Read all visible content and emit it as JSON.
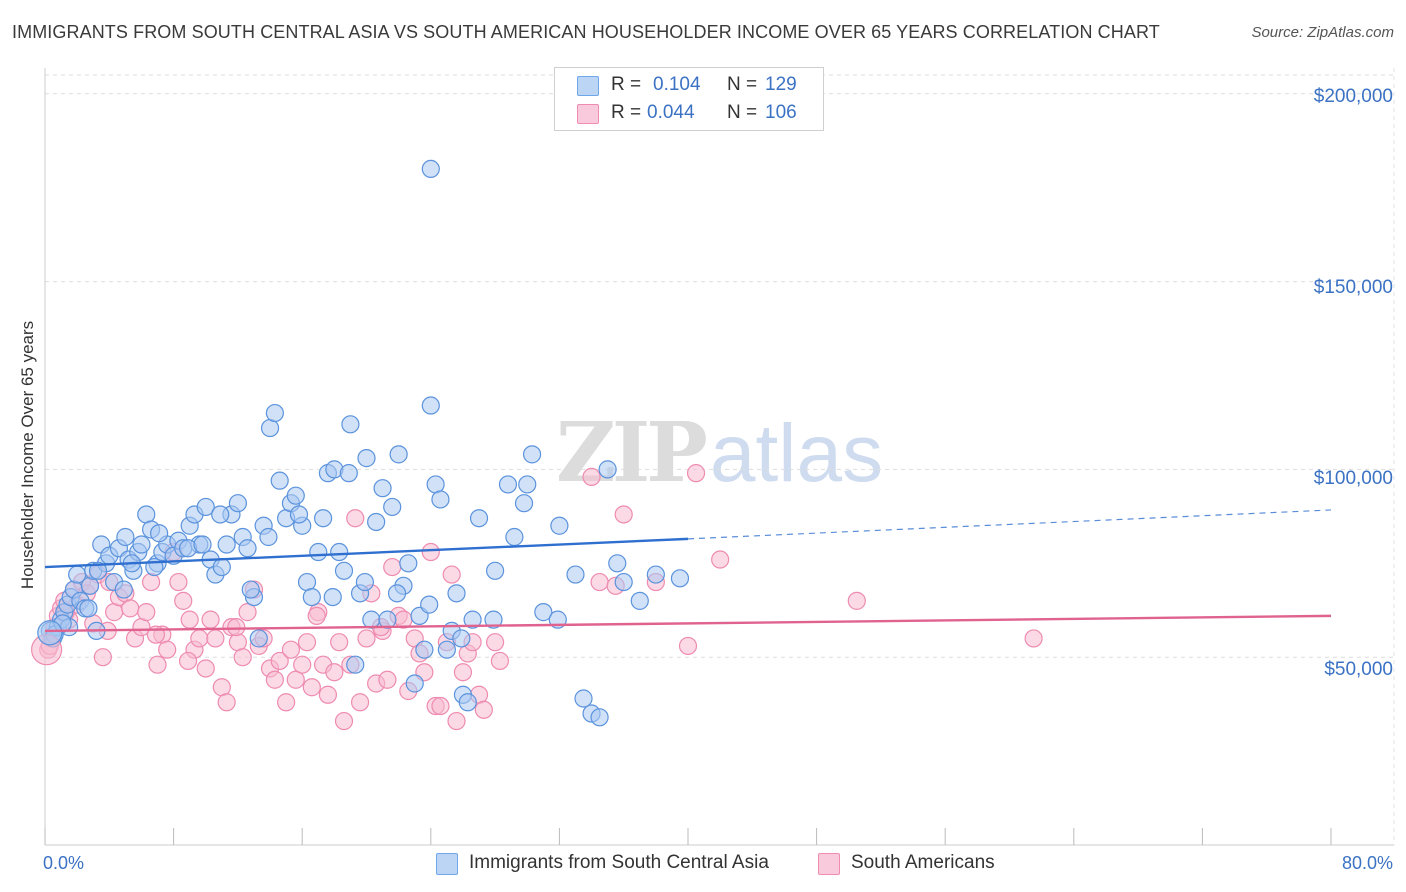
{
  "title": "IMMIGRANTS FROM SOUTH CENTRAL ASIA VS SOUTH AMERICAN HOUSEHOLDER INCOME OVER 65 YEARS CORRELATION CHART",
  "source": "Source: ZipAtlas.com",
  "watermark": {
    "zip": "ZIP",
    "atlas": "atlas"
  },
  "stats_legend": [
    {
      "r_label": "R =",
      "r_value": "0.104",
      "n_label": "N =",
      "n_value": "129",
      "color": "#6ea8ea"
    },
    {
      "r_label": "R =",
      "r_value": "0.044",
      "n_label": "N =",
      "n_value": "106",
      "color": "#f08cb0"
    }
  ],
  "colors": {
    "blue_fill": "#a9c9f2",
    "blue_stroke": "#5b93dc",
    "blue_line": "#2f6fd0",
    "pink_fill": "#f7bcd0",
    "pink_stroke": "#ee8bb0",
    "pink_line": "#e0628f",
    "axis_text": "#3b72c4",
    "grid": "#dddddd"
  },
  "chart_data": {
    "type": "scatter",
    "title": "IMMIGRANTS FROM SOUTH CENTRAL ASIA VS SOUTH AMERICAN HOUSEHOLDER INCOME OVER 65 YEARS CORRELATION CHART",
    "xlabel": "",
    "ylabel": "Householder Income Over 65 years",
    "xlim": [
      0,
      80
    ],
    "ylim": [
      0,
      205000
    ],
    "x_tick_labels": [
      "0.0%",
      "80.0%"
    ],
    "y_ticks": [
      50000,
      100000,
      150000,
      200000
    ],
    "y_tick_labels": [
      "$50,000",
      "$100,000",
      "$150,000",
      "$200,000"
    ],
    "grid": true,
    "legend_position": "bottom",
    "series": [
      {
        "name": "Immigrants from South Central Asia",
        "trend": {
          "x0": 0,
          "y0": 74000,
          "x1": 40,
          "y1": 81500,
          "dashed_to_x": 80,
          "dashed_to_y": 89200
        },
        "points": [
          [
            0.3,
            57000
          ],
          [
            0.5,
            55000
          ],
          [
            0.8,
            58000
          ],
          [
            1.0,
            60000
          ],
          [
            1.2,
            62000
          ],
          [
            1.4,
            64000
          ],
          [
            1.6,
            66000
          ],
          [
            1.8,
            68000
          ],
          [
            2.0,
            72000
          ],
          [
            2.2,
            65000
          ],
          [
            2.5,
            63000
          ],
          [
            2.8,
            69000
          ],
          [
            3.0,
            73000
          ],
          [
            3.2,
            57000
          ],
          [
            3.5,
            80000
          ],
          [
            3.8,
            75000
          ],
          [
            4.0,
            77000
          ],
          [
            4.3,
            70000
          ],
          [
            4.6,
            79000
          ],
          [
            5.0,
            82000
          ],
          [
            5.2,
            76000
          ],
          [
            5.5,
            73000
          ],
          [
            5.8,
            78000
          ],
          [
            6.0,
            80000
          ],
          [
            6.3,
            88000
          ],
          [
            6.6,
            84000
          ],
          [
            7.0,
            75000
          ],
          [
            7.3,
            78000
          ],
          [
            7.6,
            80000
          ],
          [
            8.0,
            77000
          ],
          [
            8.3,
            81000
          ],
          [
            8.6,
            79000
          ],
          [
            9.0,
            85000
          ],
          [
            9.3,
            88000
          ],
          [
            9.6,
            80000
          ],
          [
            10.0,
            90000
          ],
          [
            10.3,
            76000
          ],
          [
            10.6,
            72000
          ],
          [
            11.0,
            74000
          ],
          [
            11.3,
            80000
          ],
          [
            11.6,
            88000
          ],
          [
            12.0,
            91000
          ],
          [
            12.3,
            82000
          ],
          [
            12.6,
            79000
          ],
          [
            13.0,
            66000
          ],
          [
            13.3,
            55000
          ],
          [
            13.6,
            85000
          ],
          [
            14.0,
            111000
          ],
          [
            14.3,
            115000
          ],
          [
            14.6,
            97000
          ],
          [
            15.0,
            87000
          ],
          [
            15.3,
            91000
          ],
          [
            15.6,
            93000
          ],
          [
            16.0,
            85000
          ],
          [
            16.3,
            70000
          ],
          [
            16.6,
            66000
          ],
          [
            17.0,
            78000
          ],
          [
            17.3,
            87000
          ],
          [
            17.6,
            99000
          ],
          [
            18.0,
            100000
          ],
          [
            18.3,
            78000
          ],
          [
            18.6,
            73000
          ],
          [
            19.0,
            112000
          ],
          [
            19.3,
            48000
          ],
          [
            19.6,
            67000
          ],
          [
            20.0,
            103000
          ],
          [
            20.3,
            60000
          ],
          [
            20.6,
            86000
          ],
          [
            21.0,
            95000
          ],
          [
            21.3,
            60000
          ],
          [
            21.6,
            90000
          ],
          [
            22.0,
            104000
          ],
          [
            22.3,
            69000
          ],
          [
            22.6,
            75000
          ],
          [
            23.0,
            43000
          ],
          [
            23.3,
            61000
          ],
          [
            23.6,
            52000
          ],
          [
            24.0,
            117000
          ],
          [
            24.3,
            96000
          ],
          [
            24.6,
            92000
          ],
          [
            25.0,
            52000
          ],
          [
            25.3,
            57000
          ],
          [
            25.6,
            67000
          ],
          [
            26.0,
            40000
          ],
          [
            26.3,
            38000
          ],
          [
            26.6,
            60000
          ],
          [
            27.0,
            87000
          ],
          [
            28.0,
            73000
          ],
          [
            28.8,
            96000
          ],
          [
            29.8,
            91000
          ],
          [
            30.0,
            96000
          ],
          [
            30.3,
            104000
          ],
          [
            31.0,
            62000
          ],
          [
            32.0,
            85000
          ],
          [
            33.0,
            72000
          ],
          [
            34.0,
            35000
          ],
          [
            34.5,
            34000
          ],
          [
            35.0,
            100000
          ],
          [
            35.6,
            75000
          ],
          [
            36.0,
            70000
          ],
          [
            37.0,
            65000
          ],
          [
            38.0,
            72000
          ],
          [
            39.5,
            71000
          ],
          [
            24.0,
            180000
          ],
          [
            1.5,
            58000
          ],
          [
            2.7,
            63000
          ],
          [
            4.9,
            68000
          ],
          [
            6.8,
            74000
          ],
          [
            8.9,
            79000
          ],
          [
            12.8,
            68000
          ],
          [
            15.8,
            88000
          ],
          [
            18.9,
            99000
          ],
          [
            21.9,
            67000
          ],
          [
            25.9,
            55000
          ],
          [
            29.2,
            82000
          ],
          [
            33.5,
            39000
          ],
          [
            0.6,
            56000
          ],
          [
            1.1,
            59000
          ],
          [
            3.3,
            73000
          ],
          [
            5.4,
            75000
          ],
          [
            7.1,
            83000
          ],
          [
            9.8,
            80000
          ],
          [
            10.9,
            88000
          ],
          [
            13.9,
            82000
          ],
          [
            17.9,
            66000
          ],
          [
            19.9,
            70000
          ],
          [
            23.9,
            64000
          ],
          [
            27.9,
            60000
          ],
          [
            31.9,
            60000
          ]
        ]
      },
      {
        "name": "South Americans",
        "trend": {
          "x0": 0,
          "y0": 57000,
          "x1": 80,
          "y1": 61000
        },
        "points": [
          [
            0.2,
            52000
          ],
          [
            0.4,
            55000
          ],
          [
            0.6,
            58000
          ],
          [
            0.8,
            61000
          ],
          [
            1.0,
            63000
          ],
          [
            1.2,
            65000
          ],
          [
            1.5,
            60000
          ],
          [
            1.8,
            68000
          ],
          [
            2.0,
            64000
          ],
          [
            2.3,
            70000
          ],
          [
            2.6,
            67000
          ],
          [
            3.0,
            59000
          ],
          [
            3.3,
            72000
          ],
          [
            3.6,
            50000
          ],
          [
            4.0,
            70000
          ],
          [
            4.3,
            62000
          ],
          [
            4.6,
            66000
          ],
          [
            5.0,
            67000
          ],
          [
            5.3,
            63000
          ],
          [
            5.6,
            55000
          ],
          [
            6.0,
            58000
          ],
          [
            6.3,
            62000
          ],
          [
            6.6,
            70000
          ],
          [
            7.0,
            48000
          ],
          [
            7.3,
            56000
          ],
          [
            7.6,
            52000
          ],
          [
            8.0,
            78000
          ],
          [
            8.3,
            70000
          ],
          [
            8.6,
            65000
          ],
          [
            9.0,
            60000
          ],
          [
            9.3,
            52000
          ],
          [
            9.6,
            55000
          ],
          [
            10.0,
            47000
          ],
          [
            10.3,
            60000
          ],
          [
            10.6,
            55000
          ],
          [
            11.0,
            42000
          ],
          [
            11.3,
            38000
          ],
          [
            11.6,
            58000
          ],
          [
            12.0,
            54000
          ],
          [
            12.3,
            50000
          ],
          [
            12.6,
            62000
          ],
          [
            13.0,
            68000
          ],
          [
            13.3,
            53000
          ],
          [
            13.6,
            55000
          ],
          [
            14.0,
            47000
          ],
          [
            14.3,
            44000
          ],
          [
            14.6,
            49000
          ],
          [
            15.0,
            38000
          ],
          [
            15.3,
            52000
          ],
          [
            15.6,
            44000
          ],
          [
            16.0,
            48000
          ],
          [
            16.3,
            54000
          ],
          [
            16.6,
            42000
          ],
          [
            17.0,
            62000
          ],
          [
            17.3,
            48000
          ],
          [
            17.6,
            40000
          ],
          [
            18.0,
            46000
          ],
          [
            18.3,
            54000
          ],
          [
            18.6,
            33000
          ],
          [
            19.0,
            48000
          ],
          [
            19.3,
            87000
          ],
          [
            19.6,
            38000
          ],
          [
            20.0,
            55000
          ],
          [
            20.3,
            67000
          ],
          [
            20.6,
            43000
          ],
          [
            21.0,
            57000
          ],
          [
            21.3,
            44000
          ],
          [
            21.6,
            74000
          ],
          [
            22.0,
            61000
          ],
          [
            22.3,
            60000
          ],
          [
            22.6,
            41000
          ],
          [
            23.0,
            55000
          ],
          [
            23.3,
            51000
          ],
          [
            23.6,
            46000
          ],
          [
            24.0,
            78000
          ],
          [
            24.3,
            37000
          ],
          [
            24.6,
            37000
          ],
          [
            25.0,
            54000
          ],
          [
            25.3,
            72000
          ],
          [
            25.6,
            33000
          ],
          [
            26.0,
            46000
          ],
          [
            26.3,
            51000
          ],
          [
            26.6,
            54000
          ],
          [
            27.0,
            40000
          ],
          [
            27.3,
            36000
          ],
          [
            28.0,
            54000
          ],
          [
            28.3,
            49000
          ],
          [
            34.5,
            70000
          ],
          [
            35.5,
            69000
          ],
          [
            36.0,
            88000
          ],
          [
            38.0,
            70000
          ],
          [
            40.0,
            53000
          ],
          [
            40.5,
            99000
          ],
          [
            42.0,
            76000
          ],
          [
            50.5,
            65000
          ],
          [
            61.5,
            55000
          ],
          [
            1.3,
            62000
          ],
          [
            2.8,
            69000
          ],
          [
            6.9,
            56000
          ],
          [
            11.9,
            58000
          ],
          [
            16.9,
            61000
          ],
          [
            20.9,
            58000
          ],
          [
            34.0,
            98000
          ],
          [
            0.3,
            53000
          ],
          [
            3.9,
            57000
          ],
          [
            8.9,
            49000
          ]
        ]
      }
    ]
  }
}
